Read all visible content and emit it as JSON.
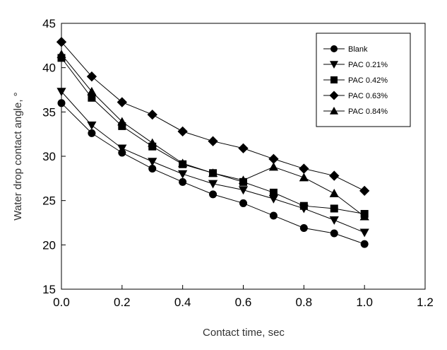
{
  "chart_data": {
    "type": "line",
    "title": "",
    "xlabel": "Contact time, sec",
    "ylabel": "Water drop contact angle, °",
    "xlim": [
      0.0,
      1.2
    ],
    "ylim": [
      15,
      45
    ],
    "x_ticks": [
      0.0,
      0.2,
      0.4,
      0.6,
      0.8,
      1.0,
      1.2
    ],
    "x_tick_labels": [
      "0.0",
      "0.2",
      "0.4",
      "0.6",
      "0.8",
      "1.0",
      "1.2"
    ],
    "y_ticks": [
      15,
      20,
      25,
      30,
      35,
      40,
      45
    ],
    "y_tick_labels": [
      "15",
      "20",
      "25",
      "30",
      "35",
      "40",
      "45"
    ],
    "grid": false,
    "legend_position": "top-right",
    "x": [
      0.0,
      0.1,
      0.2,
      0.3,
      0.4,
      0.5,
      0.6,
      0.7,
      0.8,
      0.9,
      1.0
    ],
    "series": [
      {
        "name": "Blank",
        "marker": "circle",
        "values": [
          36.0,
          32.6,
          30.4,
          28.6,
          27.1,
          25.7,
          24.7,
          23.3,
          21.9,
          21.3,
          20.1
        ]
      },
      {
        "name": "PAC 0.21%",
        "marker": "triangle-down",
        "values": [
          37.3,
          33.5,
          30.9,
          29.4,
          28.0,
          26.9,
          26.2,
          25.2,
          24.1,
          22.8,
          21.4
        ]
      },
      {
        "name": "PAC 0.42%",
        "marker": "square",
        "values": [
          41.1,
          36.6,
          33.4,
          31.1,
          29.1,
          28.1,
          27.1,
          25.9,
          24.4,
          24.1,
          23.5
        ]
      },
      {
        "name": "PAC 0.63%",
        "marker": "diamond",
        "values": [
          42.9,
          39.0,
          36.1,
          34.7,
          32.8,
          31.7,
          30.9,
          29.7,
          28.6,
          27.8,
          26.1
        ]
      },
      {
        "name": "PAC 0.84%",
        "marker": "triangle-up",
        "values": [
          41.5,
          37.3,
          33.9,
          31.5,
          29.2,
          28.1,
          27.3,
          28.8,
          27.6,
          25.8,
          23.2
        ]
      }
    ]
  }
}
